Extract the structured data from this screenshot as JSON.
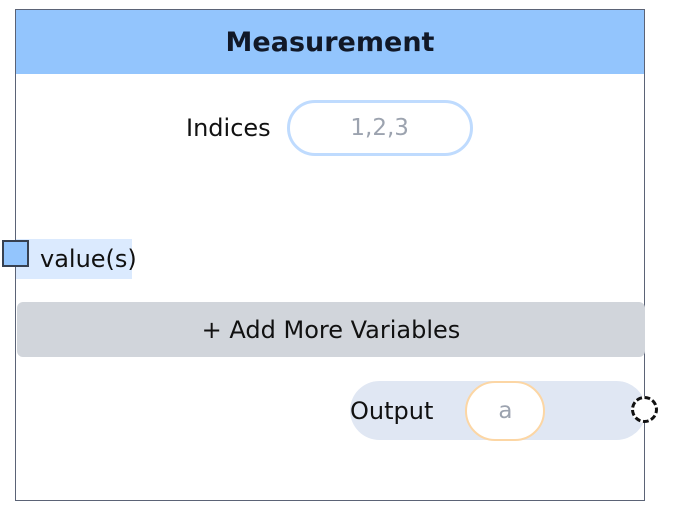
{
  "node": {
    "title": "Measurement"
  },
  "indices": {
    "label": "Indices",
    "placeholder": "1,2,3",
    "value": ""
  },
  "input_port": {
    "label": "value(s)"
  },
  "add_button": {
    "label": "+ Add More Variables"
  },
  "output": {
    "label": "Output",
    "placeholder": "a",
    "value": ""
  },
  "colors": {
    "header": "#93c5fd",
    "indices_border": "#bfdbfe",
    "output_border": "#fcd6a4",
    "button_bg": "#d1d5db",
    "output_row_bg": "#e0e7f3",
    "input_port_fill": "#93c5fd"
  }
}
